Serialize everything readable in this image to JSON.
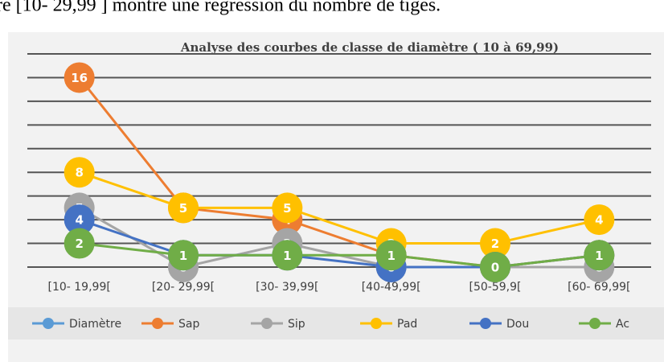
{
  "caption": "re [10- 29,99 ] montre une régression du nombre de tiges.",
  "chart_data": {
    "type": "line",
    "title": "Analyse des courbes  de classe de diamètre ( 10 à 69,99)",
    "categories": [
      "[10- 19,99[",
      "[20- 29,99[",
      "[30- 39,99[",
      "[40-49,99[",
      "[50-59,9[",
      "[60- 69,99["
    ],
    "series": [
      {
        "name": "Diamètre",
        "color": "#5b9bd5",
        "values": [
          null,
          null,
          null,
          null,
          null,
          null
        ]
      },
      {
        "name": "Sap",
        "color": "#ed7d31",
        "values": [
          16,
          5,
          4,
          1,
          0,
          1
        ]
      },
      {
        "name": "Sip",
        "color": "#a5a5a5",
        "values": [
          5,
          0,
          2,
          0,
          0,
          0
        ]
      },
      {
        "name": "Pad",
        "color": "#ffc000",
        "values": [
          8,
          5,
          5,
          2,
          2,
          4
        ]
      },
      {
        "name": "Dou",
        "color": "#4472c4",
        "values": [
          4,
          1,
          1,
          0,
          0,
          1
        ]
      },
      {
        "name": "Ac",
        "color": "#70ad47",
        "values": [
          2,
          1,
          1,
          1,
          0,
          1
        ]
      }
    ],
    "ylim": [
      0,
      18
    ],
    "yticks": [
      0,
      2,
      4,
      6,
      8,
      10,
      12,
      14,
      16,
      18
    ],
    "grid": true,
    "legend": "bottom"
  }
}
